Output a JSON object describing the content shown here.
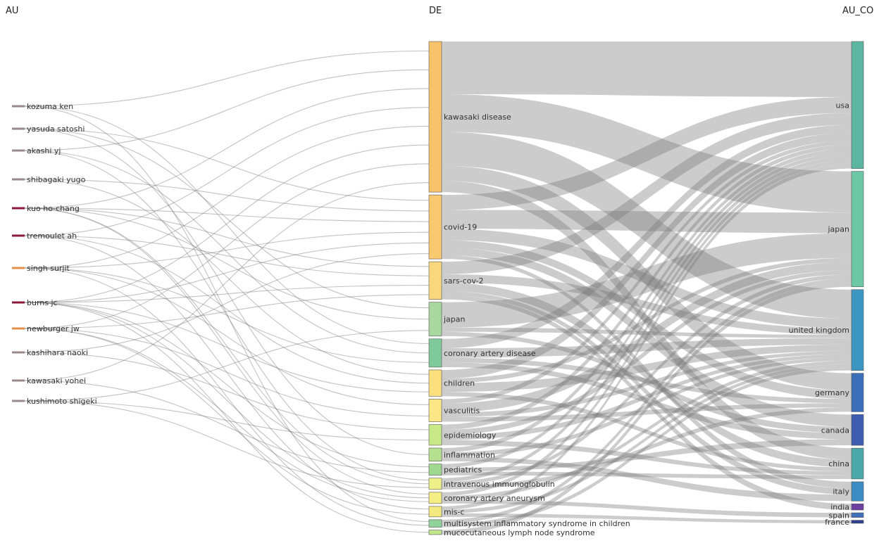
{
  "columns": {
    "left": "AU",
    "middle": "DE",
    "right": "AU_CO"
  },
  "authors": [
    {
      "name": "kozuma ken",
      "color": "#9a8a8a"
    },
    {
      "name": "yasuda satoshi",
      "color": "#9a8a8a"
    },
    {
      "name": "akashi yj",
      "color": "#9a8a8a"
    },
    {
      "name": "shibagaki yugo",
      "color": "#9a8a8a"
    },
    {
      "name": "kuo ho-chang",
      "color": "#8b1a3a"
    },
    {
      "name": "tremoulet ah",
      "color": "#8b1a3a"
    },
    {
      "name": "singh surjit",
      "color": "#e0904a"
    },
    {
      "name": "burns jc",
      "color": "#8b1a3a"
    },
    {
      "name": "newburger jw",
      "color": "#e0904a"
    },
    {
      "name": "kashihara naoki",
      "color": "#9a8a8a"
    },
    {
      "name": "kawasaki yohei",
      "color": "#9a8a8a"
    },
    {
      "name": "kushimoto shigeki",
      "color": "#9a8a8a"
    }
  ],
  "keywords": [
    {
      "name": "kawasaki disease",
      "color": "#f8c26a",
      "weight": 40
    },
    {
      "name": "covid-19",
      "color": "#f9c970",
      "weight": 17
    },
    {
      "name": "sars-cov-2",
      "color": "#fad67c",
      "weight": 10
    },
    {
      "name": "japan",
      "color": "#a8d8a0",
      "weight": 9
    },
    {
      "name": "coronary artery disease",
      "color": "#7fc99a",
      "weight": 7.5
    },
    {
      "name": "children",
      "color": "#fce07e",
      "weight": 7
    },
    {
      "name": "vasculitis",
      "color": "#fbe786",
      "weight": 6
    },
    {
      "name": "epidemiology",
      "color": "#c9e888",
      "weight": 5.5
    },
    {
      "name": "inflammation",
      "color": "#b5e090",
      "weight": 3.5
    },
    {
      "name": "pediatrics",
      "color": "#9fd890",
      "weight": 3
    },
    {
      "name": "intravenous immunoglobulin",
      "color": "#eef08a",
      "weight": 3
    },
    {
      "name": "coronary artery aneurysm",
      "color": "#f5ee84",
      "weight": 3
    },
    {
      "name": "mis-c",
      "color": "#f2ea80",
      "weight": 2.8
    },
    {
      "name": "multisystem inflammatory syndrome in children",
      "color": "#8fd29a",
      "weight": 2
    },
    {
      "name": "mucocutaneous lymph node syndrome",
      "color": "#bfe48c",
      "weight": 1.2
    }
  ],
  "countries": [
    {
      "name": "usa",
      "color": "#5bb5a0",
      "weight": 33
    },
    {
      "name": "japan",
      "color": "#6cc8a4",
      "weight": 30
    },
    {
      "name": "united kingdom",
      "color": "#3d95c2",
      "weight": 21
    },
    {
      "name": "germany",
      "color": "#3a6eb8",
      "weight": 10
    },
    {
      "name": "canada",
      "color": "#3e5db0",
      "weight": 8
    },
    {
      "name": "china",
      "color": "#4aa8a8",
      "weight": 8
    },
    {
      "name": "italy",
      "color": "#3c8cc4",
      "weight": 5
    },
    {
      "name": "india",
      "color": "#6a3fa0",
      "weight": 1.6
    },
    {
      "name": "spain",
      "color": "#4070b8",
      "weight": 1.2
    },
    {
      "name": "france",
      "color": "#2f3f90",
      "weight": 0.8
    }
  ],
  "flows_au_de": [
    [
      0,
      0
    ],
    [
      0,
      4
    ],
    [
      0,
      13
    ],
    [
      1,
      1
    ],
    [
      1,
      3
    ],
    [
      1,
      8
    ],
    [
      2,
      0
    ],
    [
      2,
      4
    ],
    [
      2,
      10
    ],
    [
      3,
      1
    ],
    [
      3,
      5
    ],
    [
      4,
      0
    ],
    [
      4,
      1
    ],
    [
      4,
      2
    ],
    [
      4,
      3
    ],
    [
      4,
      10
    ],
    [
      4,
      11
    ],
    [
      5,
      0
    ],
    [
      5,
      2
    ],
    [
      5,
      5
    ],
    [
      5,
      12
    ],
    [
      6,
      0
    ],
    [
      6,
      1
    ],
    [
      6,
      4
    ],
    [
      6,
      6
    ],
    [
      6,
      13
    ],
    [
      7,
      0
    ],
    [
      7,
      1
    ],
    [
      7,
      2
    ],
    [
      7,
      5
    ],
    [
      7,
      9
    ],
    [
      7,
      11
    ],
    [
      7,
      14
    ],
    [
      8,
      0
    ],
    [
      8,
      2
    ],
    [
      8,
      6
    ],
    [
      8,
      12
    ],
    [
      8,
      11
    ],
    [
      9,
      1
    ],
    [
      9,
      7
    ],
    [
      10,
      0
    ],
    [
      10,
      9
    ],
    [
      11,
      3
    ],
    [
      11,
      7
    ],
    [
      11,
      10
    ]
  ],
  "flows_de_co": [
    [
      0,
      0,
      14
    ],
    [
      0,
      1,
      10
    ],
    [
      0,
      2,
      9
    ],
    [
      0,
      3,
      4
    ],
    [
      0,
      5,
      3
    ],
    [
      1,
      0,
      4
    ],
    [
      1,
      1,
      5
    ],
    [
      1,
      2,
      3
    ],
    [
      1,
      3,
      2
    ],
    [
      1,
      4,
      2
    ],
    [
      1,
      6,
      1
    ],
    [
      2,
      0,
      3
    ],
    [
      2,
      2,
      2
    ],
    [
      2,
      5,
      2
    ],
    [
      2,
      6,
      1
    ],
    [
      2,
      7,
      1
    ],
    [
      3,
      1,
      6
    ],
    [
      3,
      2,
      1
    ],
    [
      3,
      4,
      1
    ],
    [
      4,
      0,
      2
    ],
    [
      4,
      2,
      2
    ],
    [
      4,
      3,
      1
    ],
    [
      4,
      4,
      1
    ],
    [
      5,
      0,
      2
    ],
    [
      5,
      1,
      1
    ],
    [
      5,
      2,
      2
    ],
    [
      5,
      5,
      1
    ],
    [
      6,
      0,
      1
    ],
    [
      6,
      1,
      2
    ],
    [
      6,
      2,
      1
    ],
    [
      6,
      3,
      1
    ],
    [
      7,
      0,
      1
    ],
    [
      7,
      1,
      1
    ],
    [
      7,
      2,
      1
    ],
    [
      7,
      5,
      1
    ],
    [
      8,
      0,
      1
    ],
    [
      8,
      2,
      1
    ],
    [
      8,
      6,
      1
    ],
    [
      9,
      0,
      1
    ],
    [
      9,
      4,
      1
    ],
    [
      9,
      5,
      1
    ],
    [
      10,
      0,
      1
    ],
    [
      10,
      1,
      1
    ],
    [
      10,
      3,
      1
    ],
    [
      11,
      0,
      1
    ],
    [
      11,
      2,
      1
    ],
    [
      11,
      8,
      1
    ],
    [
      12,
      0,
      1
    ],
    [
      12,
      2,
      1
    ],
    [
      12,
      9,
      1
    ],
    [
      13,
      1,
      1
    ],
    [
      13,
      2,
      1
    ],
    [
      14,
      1,
      1
    ]
  ]
}
